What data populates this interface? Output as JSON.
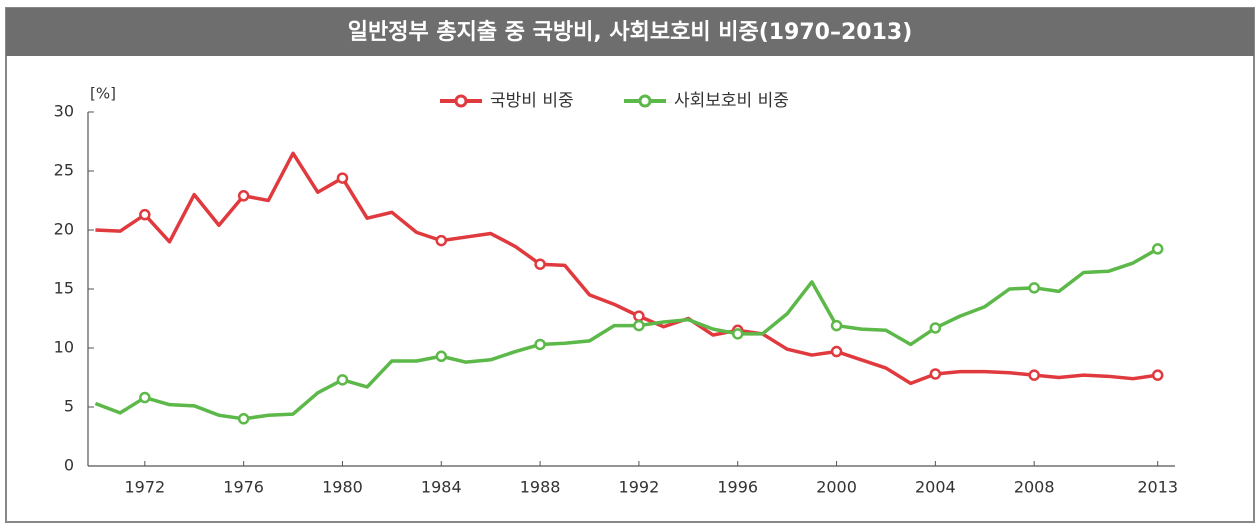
{
  "chart_data": {
    "type": "line",
    "title": "일반정부 총지출 중 국방비, 사회보호비 비중(1970–2013)",
    "y_unit": "[%]",
    "x": [
      1970,
      1971,
      1972,
      1973,
      1974,
      1975,
      1976,
      1977,
      1978,
      1979,
      1980,
      1981,
      1982,
      1983,
      1984,
      1985,
      1986,
      1987,
      1988,
      1989,
      1990,
      1991,
      1992,
      1993,
      1994,
      1995,
      1996,
      1997,
      1998,
      1999,
      2000,
      2001,
      2002,
      2003,
      2004,
      2005,
      2006,
      2007,
      2008,
      2009,
      2010,
      2011,
      2012,
      2013
    ],
    "series": [
      {
        "name": "국방비 비중",
        "color": "#e0393e",
        "values": [
          20.0,
          19.9,
          21.3,
          19.0,
          23.0,
          20.4,
          22.9,
          22.5,
          26.5,
          23.2,
          24.4,
          21.0,
          21.5,
          19.8,
          19.1,
          19.4,
          19.7,
          18.6,
          17.1,
          17.0,
          14.5,
          13.7,
          12.7,
          11.8,
          12.5,
          11.1,
          11.5,
          11.2,
          9.9,
          9.4,
          9.7,
          9.0,
          8.3,
          7.0,
          7.8,
          8.0,
          8.0,
          7.9,
          7.7,
          7.5,
          7.7,
          7.6,
          7.4,
          7.7
        ]
      },
      {
        "name": "사회보호비 비중",
        "color": "#5cb848",
        "values": [
          5.3,
          4.5,
          5.8,
          5.2,
          5.1,
          4.3,
          4.0,
          4.3,
          4.4,
          6.2,
          7.3,
          6.7,
          8.9,
          8.9,
          9.3,
          8.8,
          9.0,
          9.7,
          10.3,
          10.4,
          10.6,
          11.9,
          11.9,
          12.2,
          12.4,
          11.6,
          11.2,
          11.2,
          12.9,
          15.6,
          11.9,
          11.6,
          11.5,
          10.3,
          11.7,
          12.7,
          13.5,
          15.0,
          15.1,
          14.8,
          16.4,
          16.5,
          17.2,
          18.4
        ]
      }
    ],
    "xlim": [
      1969.7,
      2013.7
    ],
    "xticks": [
      1972,
      1976,
      1980,
      1984,
      1988,
      1992,
      1996,
      2000,
      2004,
      2008,
      2013
    ],
    "ylim": [
      0,
      30
    ],
    "yticks": [
      0,
      5,
      10,
      15,
      20,
      25,
      30
    ],
    "legend": "top"
  }
}
